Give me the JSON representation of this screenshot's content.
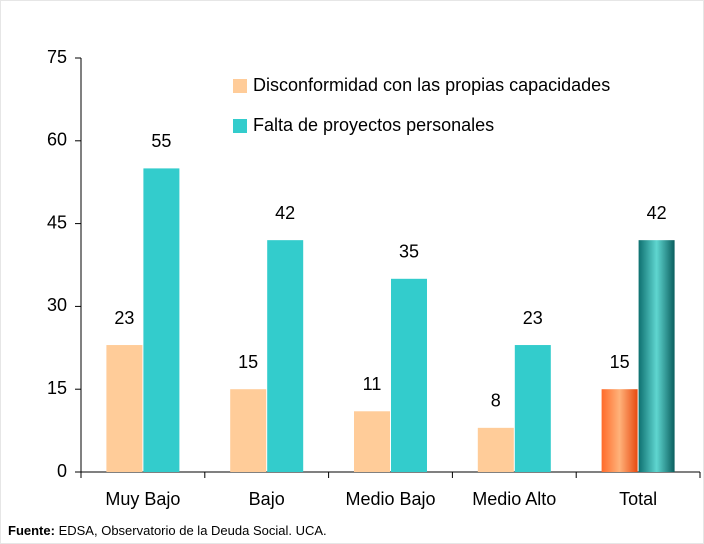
{
  "chart_data": {
    "type": "bar",
    "categories": [
      "Muy Bajo",
      "Bajo",
      "Medio Bajo",
      "Medio Alto",
      "Total"
    ],
    "series": [
      {
        "name": "Disconformidad con las propias capacidades",
        "color": "#ffcc99",
        "highlight_color": "#ff6a2a",
        "values": [
          23,
          15,
          11,
          8,
          15
        ]
      },
      {
        "name": "Falta de proyectos personales",
        "color": "#33cccc",
        "highlight_color": "#0e8080",
        "values": [
          55,
          42,
          35,
          23,
          42
        ]
      }
    ],
    "highlight_index": 4,
    "ylim": [
      0,
      75
    ],
    "yticks": [
      0,
      15,
      30,
      45,
      60,
      75
    ],
    "grid": false,
    "legend": "top",
    "source_label": "Fuente:",
    "source": "EDSA, Observatorio de la Deuda Social. UCA."
  }
}
